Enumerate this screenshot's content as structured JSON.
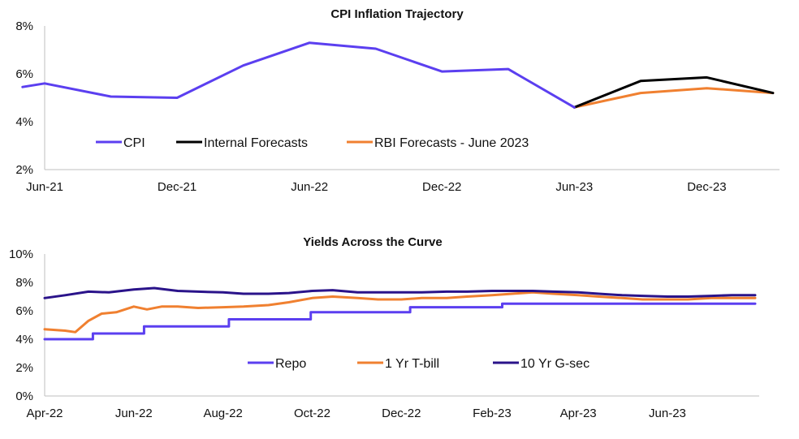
{
  "chart_data": [
    {
      "type": "line",
      "title": "CPI  Inflation Trajectory",
      "xlabel": "",
      "ylabel": "",
      "ylim": [
        2,
        8
      ],
      "yticks": [
        "2%",
        "4%",
        "6%",
        "8%"
      ],
      "xticks": [
        "Jun-21",
        "Dec-21",
        "Jun-22",
        "Dec-22",
        "Jun-23",
        "Dec-23"
      ],
      "grid": false,
      "legend_position": "bottom-left inside",
      "series": [
        {
          "name": "CPI",
          "color": "#5b3ff0",
          "x": [
            "May-21",
            "Jun-21",
            "Sep-21",
            "Dec-21",
            "Mar-22",
            "Jun-22",
            "Sep-22",
            "Dec-22",
            "Mar-23",
            "Jun-23"
          ],
          "values": [
            5.45,
            5.6,
            5.05,
            5.0,
            6.35,
            7.3,
            7.05,
            6.1,
            6.2,
            4.6
          ]
        },
        {
          "name": "Internal Forecasts",
          "color": "#000000",
          "x": [
            "Jun-23",
            "Sep-23",
            "Dec-23",
            "Mar-24"
          ],
          "values": [
            4.6,
            5.7,
            5.85,
            5.2
          ]
        },
        {
          "name": "RBI Forecasts - June 2023",
          "color": "#f08030",
          "x": [
            "Jun-23",
            "Sep-23",
            "Dec-23",
            "Mar-24"
          ],
          "values": [
            4.6,
            5.2,
            5.4,
            5.2
          ]
        }
      ]
    },
    {
      "type": "line",
      "title": "Yields Across the Curve",
      "xlabel": "",
      "ylabel": "",
      "ylim": [
        0,
        10
      ],
      "yticks": [
        "0%",
        "2%",
        "4%",
        "6%",
        "8%",
        "10%"
      ],
      "xticks": [
        "Apr-22",
        "Jun-22",
        "Aug-22",
        "Oct-22",
        "Dec-22",
        "Feb-23",
        "Apr-23",
        "Jun-23"
      ],
      "grid": false,
      "legend_position": "bottom-center inside",
      "series": [
        {
          "name": "Repo",
          "color": "#5b3ff0",
          "step": true,
          "x": [
            "2022-04-01",
            "2022-05-04",
            "2022-06-08",
            "2022-08-05",
            "2022-09-30",
            "2022-12-07",
            "2023-02-08",
            "2023-07-31"
          ],
          "values": [
            4.0,
            4.4,
            4.9,
            5.4,
            5.9,
            6.25,
            6.5,
            6.5
          ]
        },
        {
          "name": "1 Yr T-bill",
          "color": "#f08030",
          "x": [
            "2022-04-01",
            "2022-04-15",
            "2022-04-22",
            "2022-05-01",
            "2022-05-10",
            "2022-05-20",
            "2022-06-01",
            "2022-06-10",
            "2022-06-20",
            "2022-07-01",
            "2022-07-15",
            "2022-08-01",
            "2022-08-15",
            "2022-09-01",
            "2022-09-15",
            "2022-10-01",
            "2022-10-15",
            "2022-11-01",
            "2022-11-15",
            "2022-12-01",
            "2022-12-15",
            "2023-01-01",
            "2023-01-15",
            "2023-02-01",
            "2023-02-15",
            "2023-03-01",
            "2023-03-15",
            "2023-04-01",
            "2023-04-15",
            "2023-05-01",
            "2023-05-15",
            "2023-06-01",
            "2023-06-15",
            "2023-07-01",
            "2023-07-15",
            "2023-07-31"
          ],
          "values": [
            4.7,
            4.6,
            4.5,
            5.3,
            5.8,
            5.9,
            6.3,
            6.1,
            6.3,
            6.3,
            6.2,
            6.25,
            6.3,
            6.4,
            6.6,
            6.9,
            7.0,
            6.9,
            6.8,
            6.8,
            6.9,
            6.9,
            7.0,
            7.1,
            7.2,
            7.3,
            7.2,
            7.1,
            7.0,
            6.9,
            6.8,
            6.8,
            6.8,
            6.9,
            6.9,
            6.9
          ]
        },
        {
          "name": "10 Yr G-sec",
          "color": "#2a138a",
          "x": [
            "2022-04-01",
            "2022-04-15",
            "2022-05-01",
            "2022-05-15",
            "2022-06-01",
            "2022-06-15",
            "2022-07-01",
            "2022-07-15",
            "2022-08-01",
            "2022-08-15",
            "2022-09-01",
            "2022-09-15",
            "2022-10-01",
            "2022-10-15",
            "2022-11-01",
            "2022-11-15",
            "2022-12-01",
            "2022-12-15",
            "2023-01-01",
            "2023-01-15",
            "2023-02-01",
            "2023-02-15",
            "2023-03-01",
            "2023-03-15",
            "2023-04-01",
            "2023-04-15",
            "2023-05-01",
            "2023-05-15",
            "2023-06-01",
            "2023-06-15",
            "2023-07-01",
            "2023-07-15",
            "2023-07-31"
          ],
          "values": [
            6.9,
            7.1,
            7.35,
            7.3,
            7.5,
            7.6,
            7.4,
            7.35,
            7.3,
            7.2,
            7.2,
            7.25,
            7.4,
            7.45,
            7.3,
            7.3,
            7.3,
            7.3,
            7.35,
            7.35,
            7.4,
            7.4,
            7.4,
            7.35,
            7.3,
            7.2,
            7.1,
            7.05,
            7.0,
            7.0,
            7.05,
            7.1,
            7.1
          ]
        }
      ]
    }
  ]
}
